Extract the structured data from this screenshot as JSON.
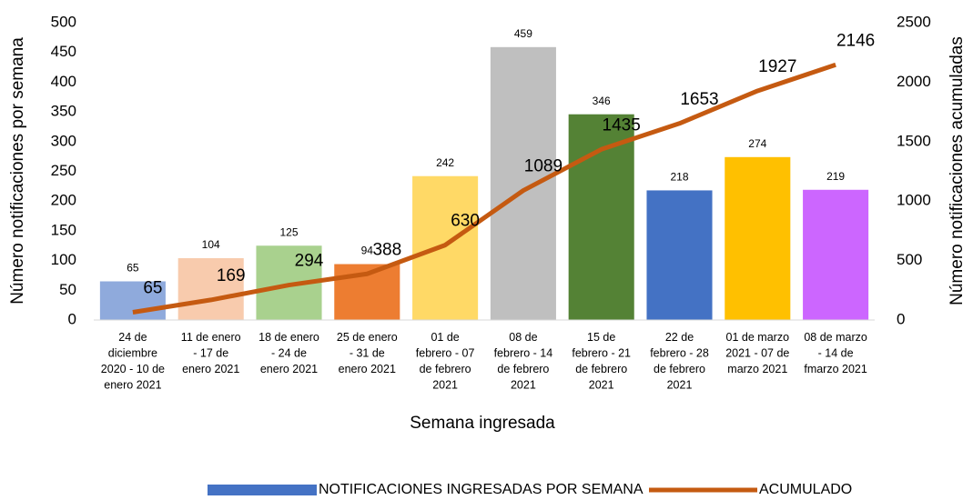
{
  "chart_data": {
    "type": "bar_line",
    "categories": [
      "24 de diciembre 2020 - 10 de enero 2021",
      "11 de enero - 17 de enero 2021",
      "18 de enero - 24 de enero 2021",
      "25 de enero - 31 de enero 2021",
      "01 de febrero - 07 de febrero 2021",
      "08 de febrero - 14 de febrero 2021",
      "15 de febrero - 21 de febrero 2021",
      "22 de febrero - 28 de febrero 2021",
      "01 de marzo 2021 - 07 de marzo 2021",
      "08 de marzo - 14 de fmarzo 2021"
    ],
    "series": [
      {
        "name": "NOTIFICACIONES INGRESADAS POR SEMANA",
        "color": "#4472c4",
        "axis": "y",
        "colors": [
          "#8faadc",
          "#f8cbad",
          "#a9d18e",
          "#ed7d31",
          "#ffd966",
          "#bfbfbf",
          "#548235",
          "#4472c4",
          "#ffc000",
          "#cc66ff"
        ],
        "values": [
          65,
          104,
          125,
          94,
          242,
          459,
          346,
          218,
          274,
          219
        ]
      },
      {
        "name": "ACUMULADO",
        "color": "#c55a11",
        "axis": "y2",
        "values": [
          65,
          169,
          294,
          388,
          630,
          1089,
          1435,
          1653,
          1927,
          2146
        ]
      }
    ],
    "xlabel": "Semana ingresada",
    "ylabel": "Número notificaciones por semana",
    "y2label": "Número notificaciones acumuladas",
    "ylim": [
      0,
      500
    ],
    "yticks": [
      0,
      50,
      100,
      150,
      200,
      250,
      300,
      350,
      400,
      450,
      500
    ],
    "y2lim": [
      0,
      2500
    ],
    "y2ticks": [
      0,
      500,
      1000,
      1500,
      2000,
      2500
    ],
    "legend": "bottom"
  }
}
